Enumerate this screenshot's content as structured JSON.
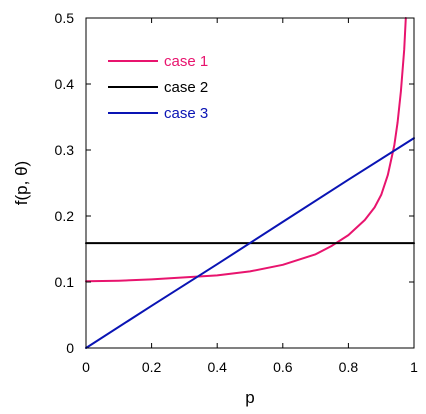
{
  "chart_data": {
    "type": "line",
    "title": "",
    "xlabel": "p",
    "ylabel": "f(p, θ)",
    "xlim": [
      0,
      1
    ],
    "ylim": [
      0,
      0.5
    ],
    "xticks": [
      0,
      0.2,
      0.4,
      0.6,
      0.8,
      1
    ],
    "xtick_labels": [
      "0",
      "0.2",
      "0.4",
      "0.6",
      "0.8",
      "1"
    ],
    "yticks": [
      0,
      0.1,
      0.2,
      0.3,
      0.4,
      0.5
    ],
    "ytick_labels": [
      "0",
      "0.1",
      "0.2",
      "0.3",
      "0.4",
      "0.5"
    ],
    "grid": false,
    "legend_position": "top-left",
    "series": [
      {
        "name": "case 1",
        "color": "#e8146e",
        "x": [
          0,
          0.1,
          0.2,
          0.3,
          0.4,
          0.5,
          0.6,
          0.7,
          0.75,
          0.8,
          0.85,
          0.88,
          0.9,
          0.92,
          0.94,
          0.95,
          0.96,
          0.97,
          0.975
        ],
        "y": [
          0.101,
          0.102,
          0.104,
          0.107,
          0.11,
          0.116,
          0.126,
          0.142,
          0.155,
          0.171,
          0.194,
          0.213,
          0.232,
          0.262,
          0.307,
          0.342,
          0.389,
          0.452,
          0.5
        ]
      },
      {
        "name": "case 2",
        "color": "#000000",
        "x": [
          0,
          1
        ],
        "y": [
          0.159,
          0.159
        ]
      },
      {
        "name": "case 3",
        "color": "#0a14b4",
        "x": [
          0,
          0.2,
          0.4,
          0.6,
          0.8,
          1
        ],
        "y": [
          0,
          0.064,
          0.127,
          0.191,
          0.255,
          0.318
        ]
      }
    ]
  }
}
